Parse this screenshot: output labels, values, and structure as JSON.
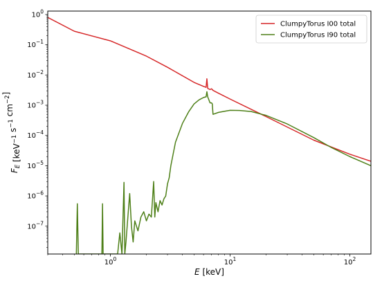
{
  "chart_data": {
    "type": "line",
    "xlabel": "E [keV]",
    "ylabel": "F_E [keV^-1 s^-1 cm^-2]",
    "x_scale": "log",
    "y_scale": "log",
    "xlim": [
      0.3,
      150
    ],
    "ylim": [
      1.2e-08,
      1.3
    ],
    "grid": false,
    "legend_position": "top-right",
    "x_ticks": [
      {
        "value": 1,
        "label": "10^0"
      },
      {
        "value": 10,
        "label": "10^1"
      },
      {
        "value": 100,
        "label": "10^2"
      }
    ],
    "y_ticks": [
      {
        "value": 1e-07,
        "label": "10^-7"
      },
      {
        "value": 1e-06,
        "label": "10^-6"
      },
      {
        "value": 1e-05,
        "label": "10^-5"
      },
      {
        "value": 0.0001,
        "label": "10^-4"
      },
      {
        "value": 0.001,
        "label": "10^-3"
      },
      {
        "value": 0.01,
        "label": "10^-2"
      },
      {
        "value": 0.1,
        "label": "10^-1"
      },
      {
        "value": 1,
        "label": "10^0"
      }
    ],
    "series": [
      {
        "name": "ClumpyTorus I00 total",
        "color": "#d62728",
        "x": [
          0.3,
          0.5,
          1.0,
          2.0,
          3.0,
          5.0,
          6.0,
          6.3,
          6.4,
          6.5,
          6.8,
          7.0,
          7.2,
          8.0,
          10.0,
          20.0,
          50.0,
          100.0,
          150.0
        ],
        "y": [
          0.8,
          0.28,
          0.135,
          0.042,
          0.018,
          0.0057,
          0.0042,
          0.0039,
          0.0075,
          0.0036,
          0.0033,
          0.0035,
          0.0031,
          0.0025,
          0.0016,
          0.00042,
          7e-05,
          2.4e-05,
          1.4e-05
        ]
      },
      {
        "name": "ClumpyTorus I90 total",
        "color": "#4d7f17",
        "x": [
          0.52,
          0.53,
          0.54,
          0.85,
          0.86,
          0.87,
          1.15,
          1.2,
          1.25,
          1.3,
          1.32,
          1.35,
          1.45,
          1.5,
          1.55,
          1.6,
          1.7,
          1.8,
          1.9,
          2.0,
          2.1,
          2.2,
          2.3,
          2.35,
          2.4,
          2.5,
          2.6,
          2.7,
          2.8,
          2.9,
          3.0,
          3.1,
          3.2,
          3.5,
          4.0,
          4.5,
          5.0,
          5.5,
          6.0,
          6.3,
          6.4,
          6.5,
          6.8,
          7.0,
          7.1,
          7.2,
          8.0,
          9.0,
          10.0,
          12.0,
          15.0,
          20.0,
          30.0,
          50.0,
          70.0,
          100.0,
          150.0
        ],
        "y": [
          1.2e-08,
          5.5e-07,
          1.2e-08,
          1.2e-08,
          5.5e-07,
          1.2e-08,
          1.2e-08,
          6e-08,
          1.2e-08,
          2.8e-06,
          1.2e-08,
          3e-08,
          1.2e-06,
          1e-07,
          3e-08,
          1.5e-07,
          7e-08,
          2e-07,
          3e-07,
          1.5e-07,
          2.5e-07,
          2e-07,
          3e-06,
          2e-07,
          6e-07,
          3e-07,
          7e-07,
          5e-07,
          8e-07,
          1e-06,
          2.5e-06,
          4e-06,
          1e-05,
          6e-05,
          0.00025,
          0.0006,
          0.0011,
          0.0015,
          0.0018,
          0.0019,
          0.0028,
          0.0019,
          0.0012,
          0.0012,
          0.0011,
          0.0005,
          0.00058,
          0.00063,
          0.00068,
          0.00067,
          0.00062,
          0.00046,
          0.00024,
          8.5e-05,
          4e-05,
          2e-05,
          1e-05
        ]
      }
    ]
  }
}
